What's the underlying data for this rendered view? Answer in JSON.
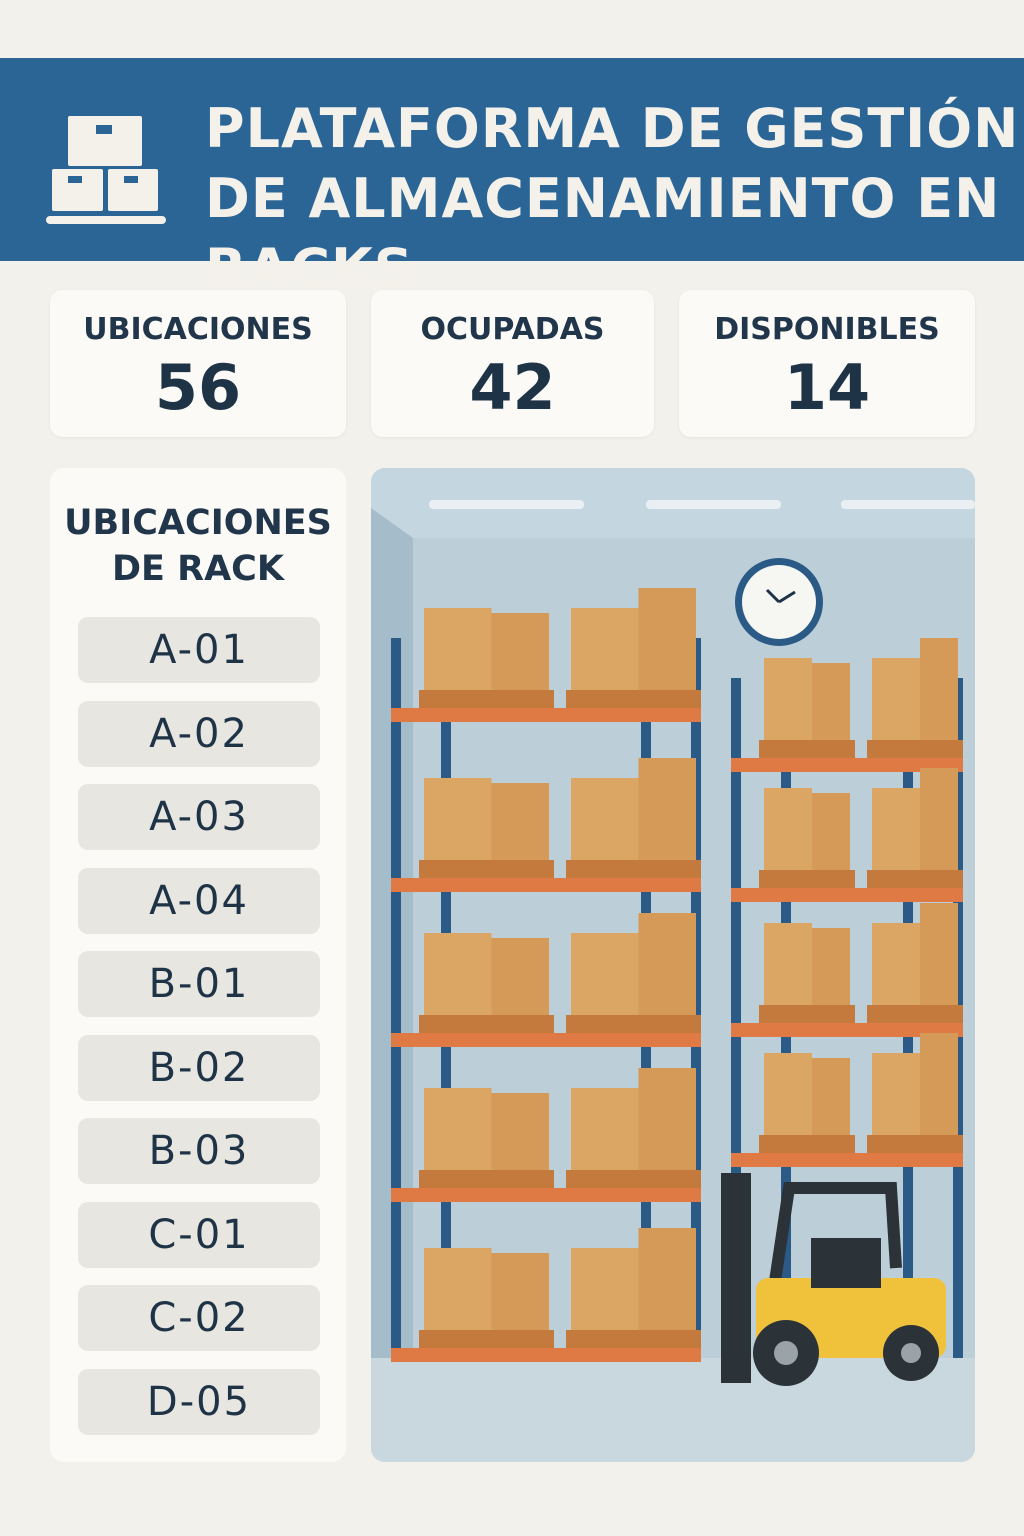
{
  "header": {
    "title_line1": "PLATAFORMA DE GESTIÓN",
    "title_line2": "DE ALMACENAMIENTO EN RACKS",
    "icon": "pallet-boxes-icon",
    "color": "#2a6596"
  },
  "stats": [
    {
      "label": "UBICACIONES",
      "value": "56"
    },
    {
      "label": "OCUPADAS",
      "value": "42"
    },
    {
      "label": "DISPONIBLES",
      "value": "14"
    }
  ],
  "locations": {
    "title_line1": "UBICACIONES",
    "title_line2": "DE RACK",
    "items": [
      "A-01",
      "A-02",
      "A-03",
      "A-04",
      "B-01",
      "B-02",
      "B-03",
      "C-01",
      "C-02",
      "D-05"
    ]
  },
  "illustration": {
    "subject": "warehouse-racks-forklift",
    "clock_time": "10:10"
  }
}
